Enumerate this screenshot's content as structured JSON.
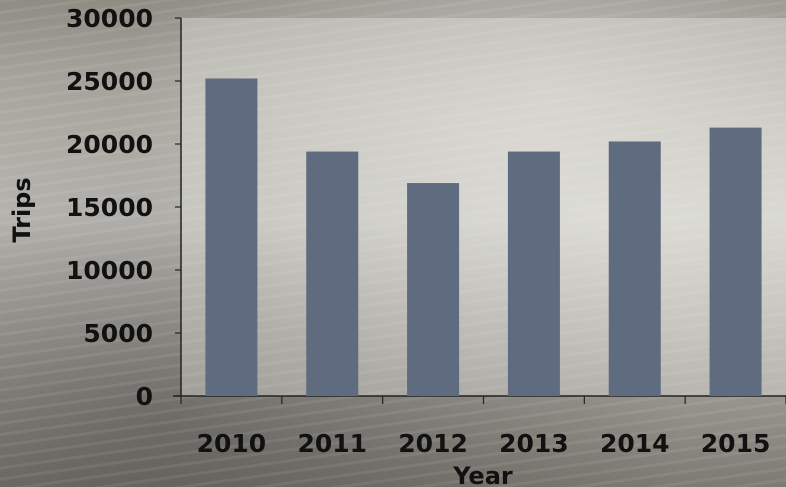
{
  "chart_data": {
    "type": "bar",
    "categories": [
      "2010",
      "2011",
      "2012",
      "2013",
      "2014",
      "2015"
    ],
    "values": [
      25200,
      19400,
      16900,
      19400,
      20200,
      21300
    ],
    "title": "",
    "xlabel": "Year",
    "ylabel": "Trips",
    "ylim": [
      0,
      30000
    ],
    "yticks": [
      "0",
      "5000",
      "10000",
      "15000",
      "20000",
      "25000",
      "30000"
    ],
    "grid": false,
    "bar_color": "#5f6b7e",
    "axis_color": "#222222"
  }
}
